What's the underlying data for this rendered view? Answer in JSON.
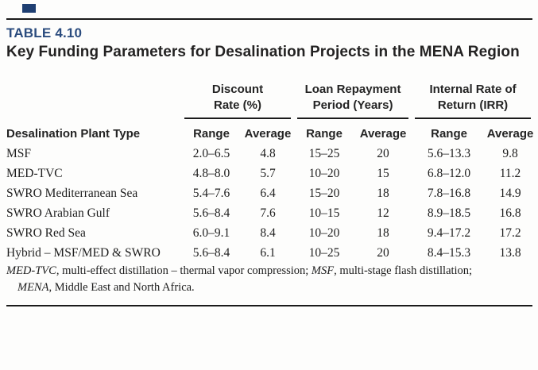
{
  "accent_color": "#2b4c7e",
  "table_label": "TABLE 4.10",
  "title": "Key Funding Parameters for Desalination Projects in the MENA Region",
  "table": {
    "row_header": "Desalination Plant Type",
    "groups": [
      {
        "line1": "Discount",
        "line2": "Rate (%)"
      },
      {
        "line1": "Loan Repayment",
        "line2": "Period (Years)"
      },
      {
        "line1": "Internal Rate of",
        "line2": "Return (IRR)"
      }
    ],
    "subheaders": {
      "range": "Range",
      "average": "Average"
    },
    "rows": [
      {
        "type": "MSF",
        "cells": [
          "2.0–6.5",
          "4.8",
          "15–25",
          "20",
          "5.6–13.3",
          "9.8"
        ]
      },
      {
        "type": "MED-TVC",
        "cells": [
          "4.8–8.0",
          "5.7",
          "10–20",
          "15",
          "6.8–12.0",
          "11.2"
        ]
      },
      {
        "type": "SWRO Mediterranean Sea",
        "cells": [
          "5.4–7.6",
          "6.4",
          "15–20",
          "18",
          "7.8–16.8",
          "14.9"
        ]
      },
      {
        "type": "SWRO Arabian Gulf",
        "cells": [
          "5.6–8.4",
          "7.6",
          "10–15",
          "12",
          "8.9–18.5",
          "16.8"
        ]
      },
      {
        "type": "SWRO Red Sea",
        "cells": [
          "6.0–9.1",
          "8.4",
          "10–20",
          "18",
          "9.4–17.2",
          "17.2"
        ]
      },
      {
        "type": "Hybrid – MSF/MED & SWRO",
        "cells": [
          "5.6–8.4",
          "6.1",
          "10–25",
          "20",
          "8.4–15.3",
          "13.8"
        ]
      }
    ]
  },
  "footnote": {
    "abbr1": "MED-TVC",
    "def1": ", multi-effect distillation – thermal vapor compression; ",
    "abbr2": "MSF",
    "def2": ", multi-stage flash distillation;",
    "abbr3": "MENA",
    "def3": ", Middle East and North Africa."
  }
}
